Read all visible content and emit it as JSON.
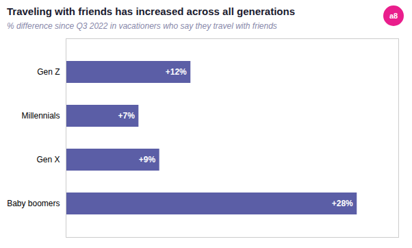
{
  "chart_data": {
    "type": "bar",
    "orientation": "horizontal",
    "title": "Traveling with friends has increased across all generations",
    "subtitle": "% difference since Q3 2022 in vacationers who say they travel with friends",
    "annotations": [
      "a8"
    ],
    "categories": [
      "Gen Z",
      "Millennials",
      "Gen X",
      "Baby boomers"
    ],
    "values": [
      12,
      7,
      9,
      28
    ],
    "value_labels": [
      "+12%",
      "+7%",
      "+9%",
      "+28%"
    ],
    "data_labels": true,
    "color": "#5b5ea6",
    "xlim": [
      0,
      32
    ],
    "tick_labels": "y",
    "grid": false
  }
}
